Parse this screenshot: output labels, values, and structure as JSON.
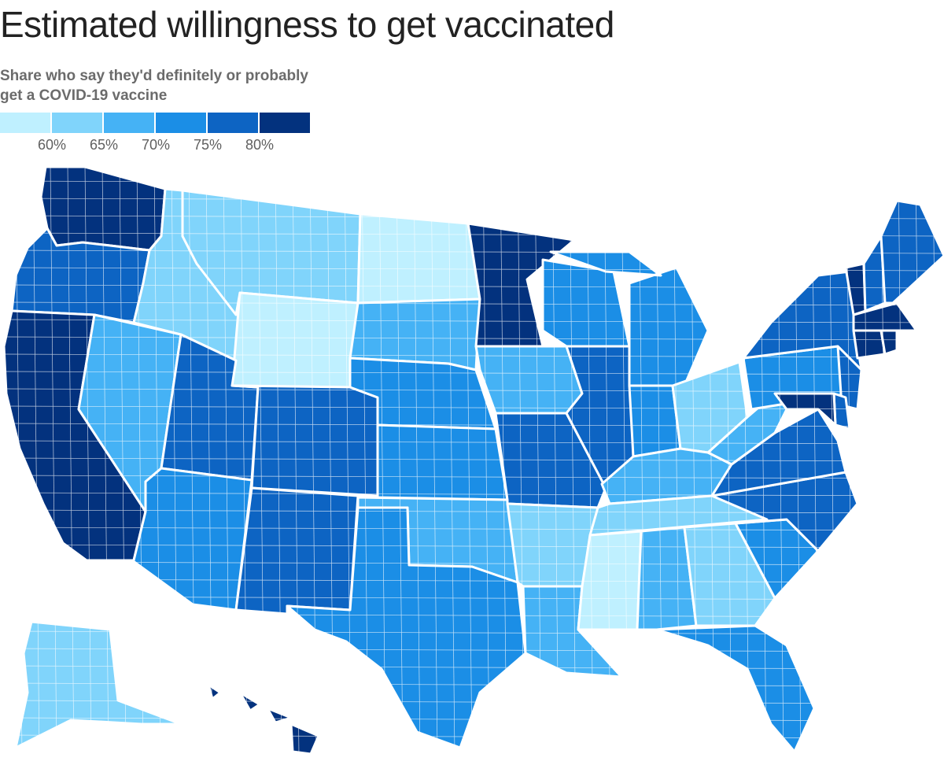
{
  "title": "Estimated willingness to get vaccinated",
  "subtitle": "Share who say they'd definitely or probably get a COVID-19 vaccine",
  "legend": {
    "colors": [
      "#bff0ff",
      "#80d4fb",
      "#45b2f5",
      "#1b8ee6",
      "#0d64c3",
      "#03327e"
    ],
    "ticks": [
      "60%",
      "65%",
      "70%",
      "75%",
      "80%"
    ]
  },
  "map": {
    "type": "choropleth",
    "unit": "share (%)",
    "bins": [
      {
        "range": "<60%",
        "color": "#bff0ff"
      },
      {
        "range": "60-65%",
        "color": "#80d4fb"
      },
      {
        "range": "65-70%",
        "color": "#45b2f5"
      },
      {
        "range": "70-75%",
        "color": "#1b8ee6"
      },
      {
        "range": "75-80%",
        "color": "#0d64c3"
      },
      {
        "range": ">80%",
        "color": "#03327e"
      }
    ],
    "regions": [
      {
        "id": "WA",
        "color": "#03327e"
      },
      {
        "id": "OR",
        "color": "#0d64c3"
      },
      {
        "id": "CA",
        "color": "#03327e"
      },
      {
        "id": "NV",
        "color": "#45b2f5"
      },
      {
        "id": "ID",
        "color": "#80d4fb"
      },
      {
        "id": "MT",
        "color": "#80d4fb"
      },
      {
        "id": "WY",
        "color": "#bff0ff"
      },
      {
        "id": "UT",
        "color": "#0d64c3"
      },
      {
        "id": "AZ",
        "color": "#1b8ee6"
      },
      {
        "id": "CO",
        "color": "#0d64c3"
      },
      {
        "id": "NM",
        "color": "#0d64c3"
      },
      {
        "id": "ND",
        "color": "#bff0ff"
      },
      {
        "id": "SD",
        "color": "#45b2f5"
      },
      {
        "id": "NE",
        "color": "#1b8ee6"
      },
      {
        "id": "KS",
        "color": "#1b8ee6"
      },
      {
        "id": "OK",
        "color": "#45b2f5"
      },
      {
        "id": "TX",
        "color": "#1b8ee6"
      },
      {
        "id": "MN",
        "color": "#03327e"
      },
      {
        "id": "IA",
        "color": "#45b2f5"
      },
      {
        "id": "MO",
        "color": "#0d64c3"
      },
      {
        "id": "AR",
        "color": "#80d4fb"
      },
      {
        "id": "LA",
        "color": "#45b2f5"
      },
      {
        "id": "WI",
        "color": "#1b8ee6"
      },
      {
        "id": "IL",
        "color": "#0d64c3"
      },
      {
        "id": "MI",
        "color": "#1b8ee6"
      },
      {
        "id": "IN",
        "color": "#1b8ee6"
      },
      {
        "id": "OH",
        "color": "#80d4fb"
      },
      {
        "id": "KY",
        "color": "#45b2f5"
      },
      {
        "id": "TN",
        "color": "#80d4fb"
      },
      {
        "id": "MS",
        "color": "#bff0ff"
      },
      {
        "id": "AL",
        "color": "#45b2f5"
      },
      {
        "id": "GA",
        "color": "#80d4fb"
      },
      {
        "id": "FL",
        "color": "#1b8ee6"
      },
      {
        "id": "SC",
        "color": "#1b8ee6"
      },
      {
        "id": "NC",
        "color": "#0d64c3"
      },
      {
        "id": "VA",
        "color": "#0d64c3"
      },
      {
        "id": "WV",
        "color": "#45b2f5"
      },
      {
        "id": "PA",
        "color": "#1b8ee6"
      },
      {
        "id": "NY",
        "color": "#0d64c3"
      },
      {
        "id": "VT",
        "color": "#03327e"
      },
      {
        "id": "NH",
        "color": "#0d64c3"
      },
      {
        "id": "ME",
        "color": "#0d64c3"
      },
      {
        "id": "MA",
        "color": "#03327e"
      },
      {
        "id": "CT",
        "color": "#03327e"
      },
      {
        "id": "RI",
        "color": "#03327e"
      },
      {
        "id": "NJ",
        "color": "#0d64c3"
      },
      {
        "id": "DE",
        "color": "#0d64c3"
      },
      {
        "id": "MD",
        "color": "#03327e"
      },
      {
        "id": "AK",
        "color": "#80d4fb"
      },
      {
        "id": "HI",
        "color": "#03327e"
      }
    ]
  }
}
